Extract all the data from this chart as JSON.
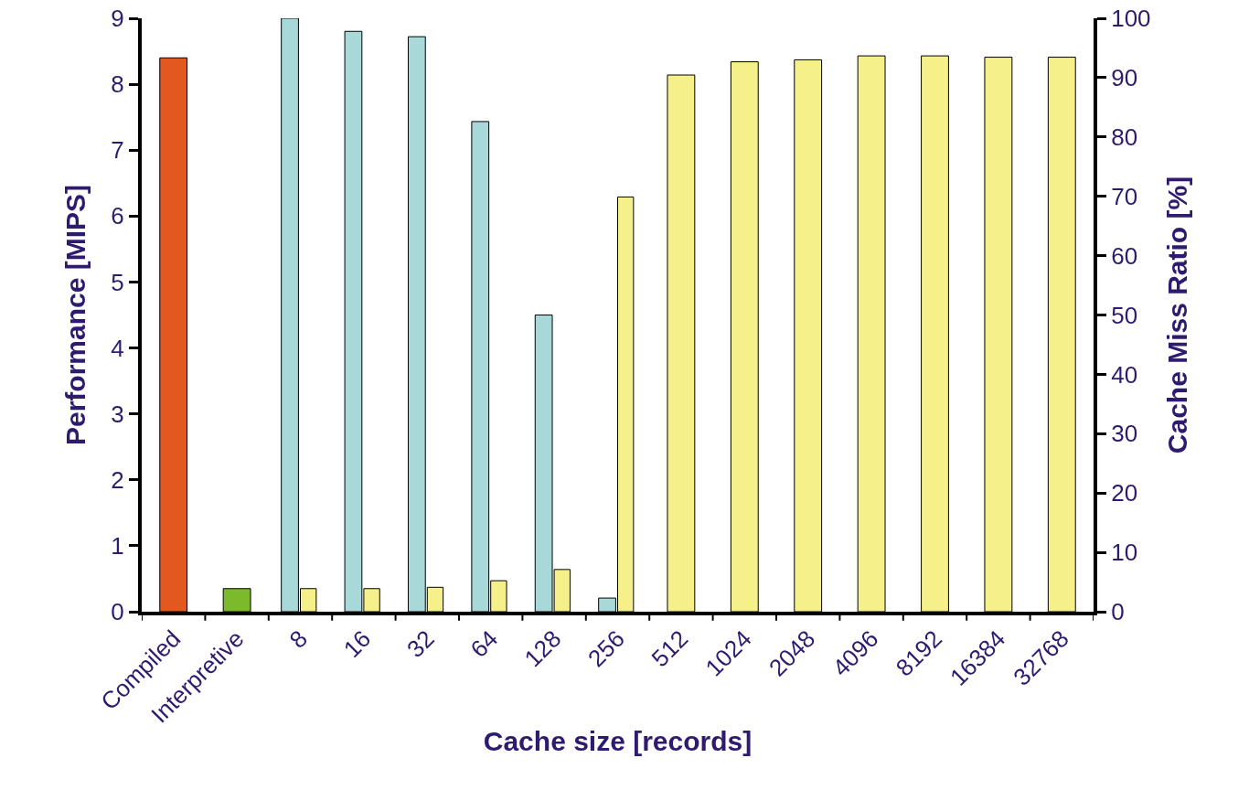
{
  "chart_data": {
    "type": "bar",
    "xlabel": "Cache size [records]",
    "ylabel": "Performance [MIPS]",
    "y2label": "Cache Miss Ratio [%]",
    "categories": [
      "Compiled",
      "Interpretive",
      "8",
      "16",
      "32",
      "64",
      "128",
      "256",
      "512",
      "1024",
      "2048",
      "4096",
      "8192",
      "16384",
      "32768"
    ],
    "series": [
      {
        "color": "#a8d8d8",
        "axis": "y2",
        "values": [
          null,
          null,
          100,
          97.8,
          96.9,
          82.6,
          50,
          2.3,
          null,
          null,
          null,
          null,
          null,
          null,
          null
        ]
      },
      {
        "colors": [
          "#e2581f",
          "#7cba2c",
          "#f5f08a",
          "#f5f08a",
          "#f5f08a",
          "#f5f08a",
          "#f5f08a",
          "#f5f08a",
          "#f5f08a",
          "#f5f08a",
          "#f5f08a",
          "#f5f08a",
          "#f5f08a",
          "#f5f08a",
          "#f5f08a"
        ],
        "values": [
          8.4,
          0.35,
          0.35,
          0.35,
          0.37,
          0.47,
          0.64,
          6.29,
          8.14,
          8.34,
          8.37,
          8.43,
          8.43,
          8.41,
          8.41
        ]
      }
    ],
    "ylim": [
      0,
      9
    ],
    "yticks": [
      0,
      1,
      2,
      3,
      4,
      5,
      6,
      7,
      8,
      9
    ],
    "y2lim": [
      0,
      100
    ],
    "y2ticks": [
      0,
      10,
      20,
      30,
      40,
      50,
      60,
      70,
      80,
      90,
      100
    ],
    "grid": false
  }
}
